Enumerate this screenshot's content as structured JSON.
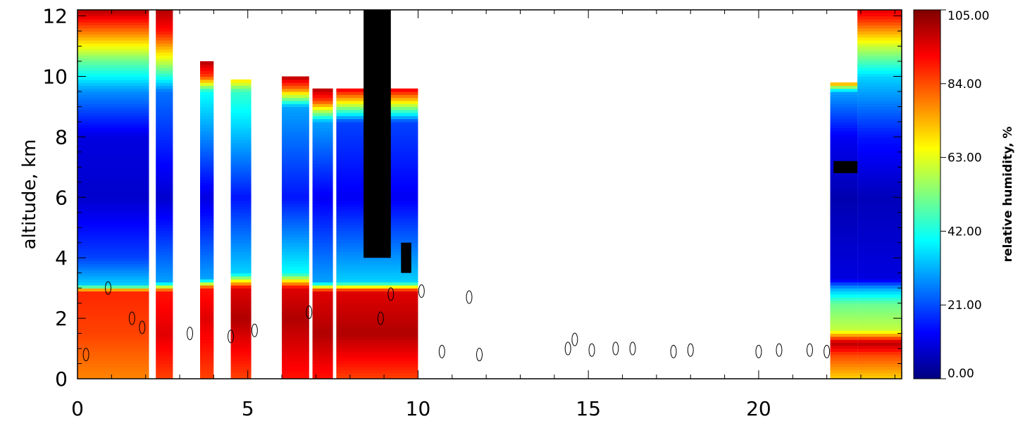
{
  "chart_data": {
    "type": "heatmap",
    "title": "",
    "xlabel": "",
    "ylabel": "altitude, km",
    "xlim": [
      0,
      24.2
    ],
    "ylim": [
      0,
      12.2
    ],
    "x_ticks": [
      0,
      5,
      10,
      15,
      20
    ],
    "x_tick_labels": [
      "0",
      "5",
      "10",
      "15",
      "20"
    ],
    "y_ticks": [
      0,
      2,
      4,
      6,
      8,
      10,
      12
    ],
    "y_tick_labels": [
      "0",
      "2",
      "4",
      "6",
      "8",
      "10",
      "12"
    ],
    "colorbar": {
      "label": "relative humidity, %",
      "range": [
        0,
        105
      ],
      "ticks": [
        0,
        21,
        42,
        63,
        84,
        105
      ],
      "tick_labels": [
        "0.00",
        "21.00",
        "42.00",
        "63.00",
        "84.00",
        "105.00"
      ],
      "colormap": [
        "#00007f",
        "#0000ff",
        "#007fff",
        "#00ffff",
        "#7fff7f",
        "#ffff00",
        "#ff7f00",
        "#ff0000",
        "#7f0000"
      ]
    },
    "data_blocks": [
      {
        "x": [
          0.0,
          2.1
        ],
        "profile": [
          [
            0,
            78
          ],
          [
            1.5,
            85
          ],
          [
            2.9,
            88
          ],
          [
            3.1,
            35
          ],
          [
            4,
            20
          ],
          [
            6,
            8
          ],
          [
            8,
            10
          ],
          [
            9.5,
            28
          ],
          [
            10.5,
            50
          ],
          [
            11.5,
            80
          ],
          [
            12.2,
            100
          ]
        ]
      },
      {
        "x": [
          2.3,
          2.8
        ],
        "profile": [
          [
            0,
            85
          ],
          [
            1.5,
            95
          ],
          [
            2.9,
            90
          ],
          [
            3.2,
            30
          ],
          [
            6,
            8
          ],
          [
            9.5,
            25
          ],
          [
            10.5,
            60
          ],
          [
            11.5,
            90
          ],
          [
            12.2,
            100
          ]
        ]
      },
      {
        "x": [
          3.6,
          4.0
        ],
        "profile": [
          [
            0,
            85
          ],
          [
            2,
            95
          ],
          [
            3,
            90
          ],
          [
            3.3,
            30
          ],
          [
            6,
            10
          ],
          [
            9.5,
            40
          ],
          [
            10,
            85
          ],
          [
            10.5,
            100
          ]
        ]
      },
      {
        "x": [
          4.5,
          5.1
        ],
        "profile": [
          [
            0,
            85
          ],
          [
            2,
            100
          ],
          [
            3,
            95
          ],
          [
            3.5,
            35
          ],
          [
            6,
            15
          ],
          [
            9.5,
            45
          ],
          [
            9.9,
            70
          ]
        ]
      },
      {
        "x": [
          6.0,
          6.8
        ],
        "profile": [
          [
            0,
            90
          ],
          [
            2,
            100
          ],
          [
            3,
            95
          ],
          [
            3.5,
            40
          ],
          [
            6,
            15
          ],
          [
            9,
            30
          ],
          [
            9.6,
            80
          ],
          [
            10,
            100
          ]
        ]
      },
      {
        "x": [
          6.9,
          7.5
        ],
        "profile": [
          [
            0,
            90
          ],
          [
            1.5,
            100
          ],
          [
            2.9,
            95
          ],
          [
            3.2,
            30
          ],
          [
            6,
            12
          ],
          [
            8.5,
            30
          ],
          [
            9.2,
            85
          ],
          [
            9.6,
            100
          ]
        ]
      },
      {
        "x": [
          7.6,
          10.0
        ],
        "profile": [
          [
            0,
            85
          ],
          [
            1.5,
            100
          ],
          [
            2.9,
            95
          ],
          [
            3.2,
            35
          ],
          [
            6,
            12
          ],
          [
            8.5,
            20
          ],
          [
            9.2,
            70
          ],
          [
            9.6,
            95
          ]
        ]
      },
      {
        "x": [
          22.1,
          22.9
        ],
        "profile": [
          [
            0,
            70
          ],
          [
            0.8,
            85
          ],
          [
            1.2,
            100
          ],
          [
            1.6,
            60
          ],
          [
            2.5,
            50
          ],
          [
            3.0,
            30
          ],
          [
            3.3,
            10
          ],
          [
            6,
            5
          ],
          [
            8,
            12
          ],
          [
            9.5,
            30
          ],
          [
            9.8,
            80
          ]
        ]
      },
      {
        "x": [
          22.9,
          24.2
        ],
        "profile": [
          [
            0,
            70
          ],
          [
            0.8,
            85
          ],
          [
            1.2,
            100
          ],
          [
            1.6,
            60
          ],
          [
            2.5,
            50
          ],
          [
            3.0,
            30
          ],
          [
            3.3,
            10
          ],
          [
            6,
            6
          ],
          [
            8,
            15
          ],
          [
            10,
            35
          ],
          [
            11,
            60
          ],
          [
            11.8,
            85
          ],
          [
            12.2,
            95
          ]
        ]
      }
    ],
    "saturated_regions": [
      {
        "x": [
          8.4,
          9.2
        ],
        "y": [
          4.0,
          12.2
        ]
      },
      {
        "x": [
          9.5,
          9.8
        ],
        "y": [
          3.5,
          4.5
        ]
      },
      {
        "x": [
          22.2,
          22.9
        ],
        "y": [
          6.8,
          7.2
        ]
      }
    ],
    "cloud_contours": [
      [
        0.25,
        0.8
      ],
      [
        0.9,
        3.0
      ],
      [
        1.6,
        2.0
      ],
      [
        1.9,
        1.7
      ],
      [
        3.3,
        1.5
      ],
      [
        4.5,
        1.4
      ],
      [
        5.2,
        1.6
      ],
      [
        6.8,
        2.2
      ],
      [
        8.9,
        2.0
      ],
      [
        9.2,
        2.8
      ],
      [
        10.1,
        2.9
      ],
      [
        10.7,
        0.9
      ],
      [
        11.5,
        2.7
      ],
      [
        11.8,
        0.8
      ],
      [
        14.4,
        1.0
      ],
      [
        14.6,
        1.3
      ],
      [
        15.1,
        0.95
      ],
      [
        15.8,
        1.0
      ],
      [
        16.3,
        1.0
      ],
      [
        17.5,
        0.9
      ],
      [
        18.0,
        0.95
      ],
      [
        20.0,
        0.9
      ],
      [
        20.6,
        0.95
      ],
      [
        21.5,
        0.95
      ],
      [
        22.0,
        0.9
      ]
    ]
  }
}
